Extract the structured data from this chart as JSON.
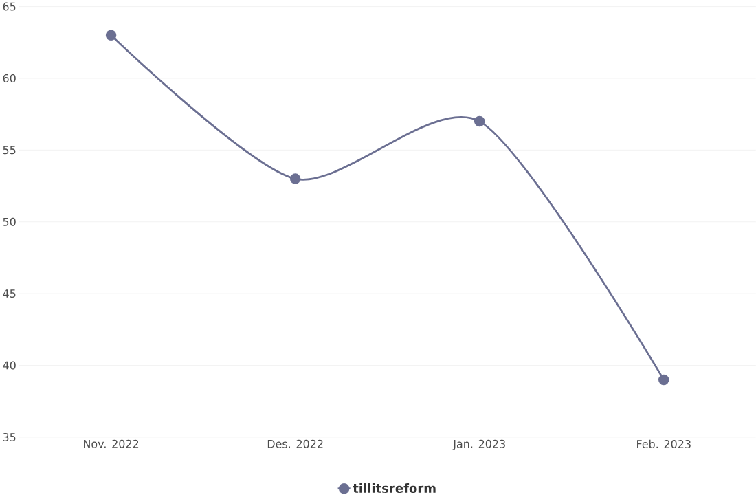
{
  "chart_data": {
    "type": "line",
    "categories": [
      "Nov. 2022",
      "Des. 2022",
      "Jan. 2023",
      "Feb. 2023"
    ],
    "series": [
      {
        "name": "tillitsreform",
        "color": "#6b6f92",
        "values": [
          63,
          53,
          57,
          39
        ]
      }
    ],
    "ylim": [
      35,
      65
    ],
    "yticks": [
      35,
      40,
      45,
      50,
      55,
      60,
      65
    ],
    "grid": "y",
    "legend": "bottom",
    "marker": "circle"
  }
}
